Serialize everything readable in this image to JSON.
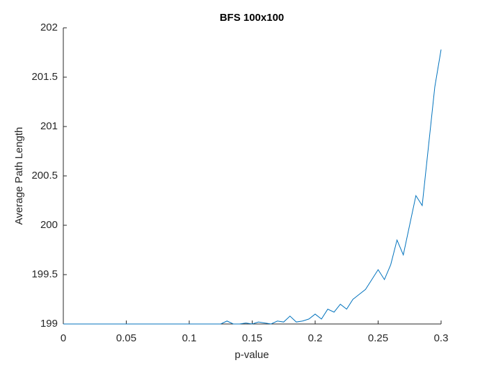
{
  "chart_data": {
    "type": "line",
    "title": "BFS 100x100",
    "x_label": "p-value",
    "y_label": "Average Path Length",
    "x": [
      0,
      0.005,
      0.01,
      0.015,
      0.02,
      0.025,
      0.03,
      0.035,
      0.04,
      0.045,
      0.05,
      0.055,
      0.06,
      0.065,
      0.07,
      0.075,
      0.08,
      0.085,
      0.09,
      0.095,
      0.1,
      0.105,
      0.11,
      0.115,
      0.12,
      0.125,
      0.13,
      0.135,
      0.14,
      0.145,
      0.15,
      0.155,
      0.16,
      0.165,
      0.17,
      0.175,
      0.18,
      0.185,
      0.19,
      0.195,
      0.2,
      0.205,
      0.21,
      0.215,
      0.22,
      0.225,
      0.23,
      0.235,
      0.24,
      0.245,
      0.25,
      0.255,
      0.26,
      0.265,
      0.27,
      0.275,
      0.28,
      0.285,
      0.29,
      0.295,
      0.3
    ],
    "series": [
      {
        "color": "#0072bd",
        "values": [
          199,
          199,
          199,
          199,
          199,
          199,
          199,
          199,
          199,
          199,
          199,
          199,
          199,
          199,
          199,
          199,
          199,
          199,
          199,
          199,
          199,
          199,
          199,
          199,
          199,
          199,
          199.03,
          199,
          199,
          199.01,
          199,
          199.02,
          199.01,
          199,
          199.03,
          199.02,
          199.08,
          199.02,
          199.03,
          199.05,
          199.1,
          199.05,
          199.15,
          199.12,
          199.2,
          199.15,
          199.25,
          199.3,
          199.35,
          199.45,
          199.55,
          199.45,
          199.6,
          199.85,
          199.7,
          200.0,
          200.3,
          200.2,
          200.8,
          201.4,
          201.78
        ]
      }
    ],
    "xlim": [
      0,
      0.3
    ],
    "ylim": [
      199,
      202
    ],
    "xticks": [
      0,
      0.05,
      0.1,
      0.15,
      0.2,
      0.25,
      0.3
    ],
    "yticks": [
      199,
      199.5,
      200,
      200.5,
      201,
      201.5,
      202
    ]
  }
}
